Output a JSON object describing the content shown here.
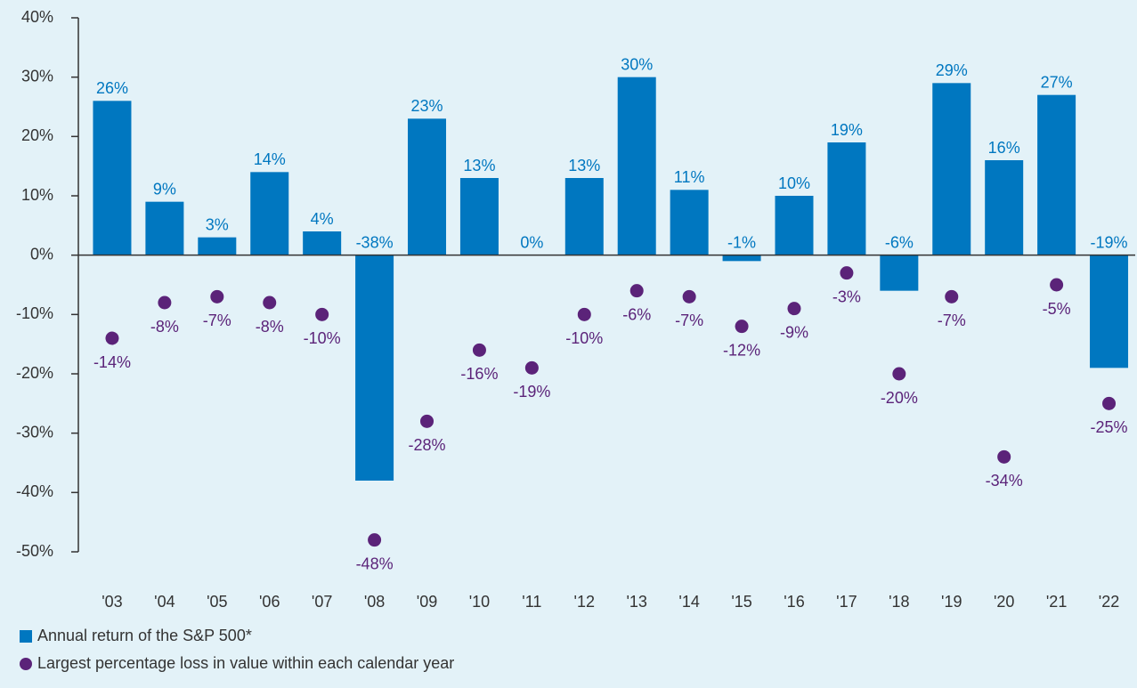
{
  "chart_data": {
    "type": "bar",
    "categories": [
      "'03",
      "'04",
      "'05",
      "'06",
      "'07",
      "'08",
      "'09",
      "'10",
      "'11",
      "'12",
      "'13",
      "'14",
      "'15",
      "'16",
      "'17",
      "'18",
      "'19",
      "'20",
      "'21",
      "'22"
    ],
    "series": [
      {
        "name": "Annual return of the S&P 500*",
        "type": "bar",
        "color": "#0077c0",
        "values": [
          26,
          9,
          3,
          14,
          4,
          -38,
          23,
          13,
          0,
          13,
          30,
          11,
          -1,
          10,
          19,
          -6,
          29,
          16,
          27,
          -19
        ],
        "value_labels": [
          "26%",
          "9%",
          "3%",
          "14%",
          "4%",
          "-38%",
          "23%",
          "13%",
          "0%",
          "13%",
          "30%",
          "11%",
          "-1%",
          "10%",
          "19%",
          "-6%",
          "29%",
          "16%",
          "27%",
          "-19%"
        ]
      },
      {
        "name": "Largest percentage loss in value within each calendar year",
        "type": "scatter",
        "color": "#5b2379",
        "values": [
          -14,
          -8,
          -7,
          -8,
          -10,
          -48,
          -28,
          -16,
          -19,
          -10,
          -6,
          -7,
          -12,
          -9,
          -3,
          -20,
          -7,
          -34,
          -5,
          -25
        ],
        "value_labels": [
          "-14%",
          "-8%",
          "-7%",
          "-8%",
          "-10%",
          "-48%",
          "-28%",
          "-16%",
          "-19%",
          "-10%",
          "-6%",
          "-7%",
          "-12%",
          "-9%",
          "-3%",
          "-20%",
          "-7%",
          "-34%",
          "-5%",
          "-25%"
        ]
      }
    ],
    "ylim": [
      -50,
      40
    ],
    "yticks": [
      {
        "value": -50,
        "label": "-50%"
      },
      {
        "value": -40,
        "label": "-40%"
      },
      {
        "value": -30,
        "label": "-30%"
      },
      {
        "value": -20,
        "label": "-20%"
      },
      {
        "value": -10,
        "label": "-10%"
      },
      {
        "value": 0,
        "label": "0%"
      },
      {
        "value": 10,
        "label": "10%"
      },
      {
        "value": 20,
        "label": "20%"
      },
      {
        "value": 30,
        "label": "30%"
      },
      {
        "value": 40,
        "label": "40%"
      }
    ],
    "legend": "bottom-left"
  }
}
